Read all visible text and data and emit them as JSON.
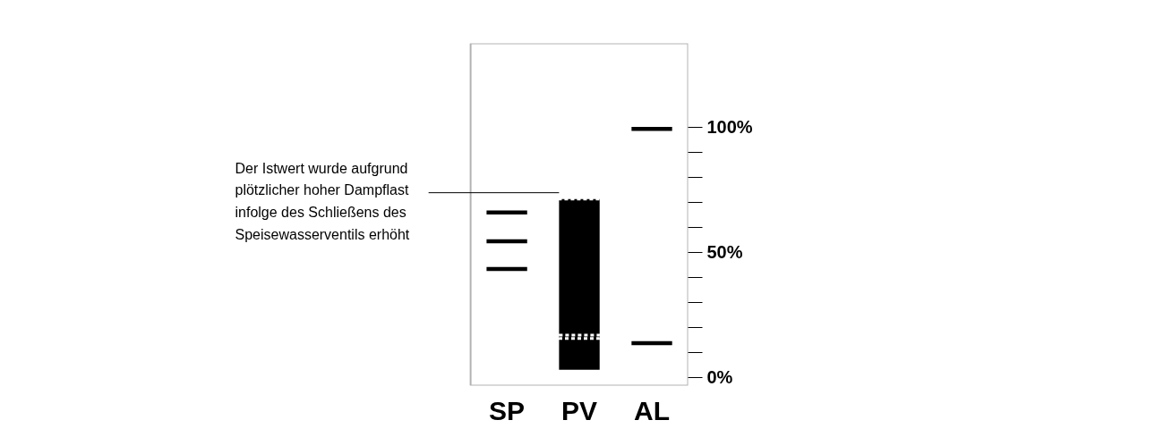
{
  "chart_data": {
    "type": "bar",
    "categories": [
      "SP",
      "PV",
      "AL"
    ],
    "ylim": [
      -3.3,
      133.5
    ],
    "yticks": [
      {
        "value": 0,
        "label": "0%"
      },
      {
        "value": 10,
        "label": null
      },
      {
        "value": 20,
        "label": null
      },
      {
        "value": 30,
        "label": null
      },
      {
        "value": 40,
        "label": null
      },
      {
        "value": 50,
        "label": "50%"
      },
      {
        "value": 60,
        "label": null
      },
      {
        "value": 70,
        "label": null
      },
      {
        "value": 80,
        "label": null
      },
      {
        "value": 90,
        "label": null
      },
      {
        "value": 100,
        "label": "100%"
      }
    ],
    "series": [
      {
        "color": "#000000",
        "values": [
          null,
          68.3,
          null
        ],
        "base": [
          null,
          3,
          null
        ]
      },
      {
        "color": "#000000",
        "values": [
          1.6,
          null,
          1.6
        ],
        "base": [
          65.1,
          null,
          98.5
        ]
      },
      {
        "color": "#000000",
        "values": [
          1.6,
          null,
          null
        ],
        "base": [
          53.6,
          null,
          null
        ]
      },
      {
        "color": "#000000",
        "values": [
          1.6,
          null,
          1.6
        ],
        "base": [
          42.5,
          null,
          12.9
        ]
      },
      {
        "color": "#ffffff",
        "line_style": "dotted",
        "values": [
          null,
          1.2,
          null
        ],
        "base": [
          null,
          71.3,
          null
        ]
      },
      {
        "color": "#ffffff",
        "line_style": "dotted",
        "values": [
          null,
          1.4,
          null
        ],
        "base": [
          null,
          15.5,
          null
        ]
      }
    ],
    "ref_lines": [
      {
        "axis": "y",
        "value": 73.8,
        "color": "#000000",
        "label": "Der Istwert wurde aufgrund\nplötzlicher hoher Dampflast\ninfolge des Schließens des\nSpeisewasserventils erhöht"
      }
    ],
    "grid": false
  }
}
